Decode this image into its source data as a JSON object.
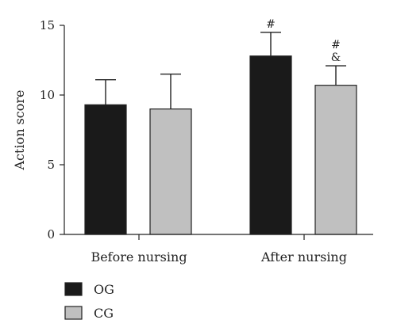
{
  "chart_data": {
    "type": "bar",
    "categories": [
      "Before nursing",
      "After nursing"
    ],
    "series": [
      {
        "name": "OG",
        "color": "#1a1a1a",
        "values": [
          9.3,
          12.8
        ],
        "errors": [
          1.8,
          1.7
        ],
        "annotations": [
          "",
          "#"
        ]
      },
      {
        "name": "CG",
        "color": "#c0c0c0",
        "values": [
          9.0,
          10.7
        ],
        "errors": [
          2.5,
          1.4
        ],
        "annotations": [
          "",
          "#\n&"
        ]
      }
    ],
    "ylabel": "Action score",
    "xlabel": "",
    "ylim": [
      0,
      15
    ],
    "yticks": [
      0,
      5,
      10,
      15
    ],
    "grid": false,
    "legend_position": "bottom-left"
  }
}
